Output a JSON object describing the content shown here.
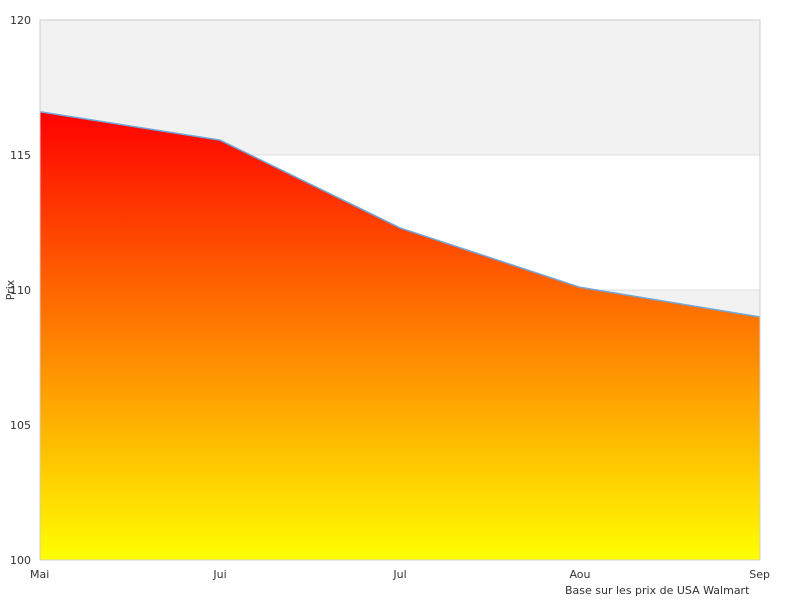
{
  "chart_data": {
    "type": "area",
    "categories": [
      "Mai",
      "Jui",
      "Jul",
      "Aou",
      "Sep"
    ],
    "series": [
      {
        "values": [
          116.6,
          115.55,
          112.3,
          110.1,
          109.0
        ]
      }
    ],
    "title": "",
    "xlabel": "",
    "ylabel": "Prix",
    "ylim": [
      100,
      120
    ],
    "yticks": [
      100,
      105,
      110,
      115,
      120
    ],
    "grid": true,
    "grid_bands": "alternating light gray / white horizontal bands",
    "fill_gradient": {
      "top": "#ff0000",
      "bottom": "#ffff00"
    },
    "line_color": "#6fa8dc",
    "axis_color": "#cccccc"
  },
  "footnote": "Base sur les prix de USA Walmart"
}
